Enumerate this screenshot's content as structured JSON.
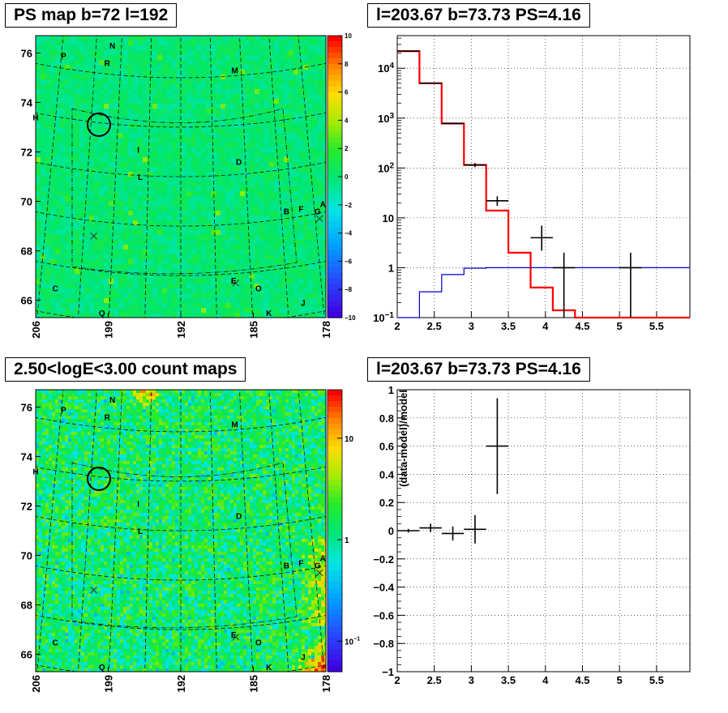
{
  "panels": {
    "ps_map": {
      "title": "PS map b=72 l=192"
    },
    "spectrum": {
      "title": "l=203.67 b=73.73 PS=4.16"
    },
    "count_map": {
      "title": "2.50<logE<3.00 count maps"
    },
    "residual": {
      "title": "l=203.67 b=73.73 PS=4.16"
    }
  },
  "colors": {
    "map_background": "#3de655",
    "model_line": "#ff0000",
    "background_line": "#0000cc",
    "data_marker": "#000000",
    "grid": "#000000"
  },
  "chart_data": [
    {
      "id": "ps_map",
      "type": "heatmap",
      "title": "PS map b=72 l=192",
      "x_ticks": [
        "206",
        "199",
        "192",
        "185",
        "178"
      ],
      "y_ticks": [
        "66",
        "68",
        "70",
        "72",
        "74",
        "76"
      ],
      "xlim": [
        206,
        178
      ],
      "ylim": [
        65.3,
        76.7
      ],
      "colorbar": {
        "scale": "linear",
        "range": [
          -10,
          10
        ],
        "ticks": [
          "10",
          "8",
          "6",
          "4",
          "2",
          "0",
          "−2",
          "−4",
          "−6",
          "−8",
          "−10"
        ]
      },
      "source_labels": [
        {
          "label": "P",
          "l": 203.3,
          "b": 75.9
        },
        {
          "label": "N",
          "l": 198.6,
          "b": 76.3
        },
        {
          "label": "R",
          "l": 199.1,
          "b": 75.6
        },
        {
          "label": "M",
          "l": 186.8,
          "b": 75.3
        },
        {
          "label": "H",
          "l": 206.0,
          "b": 73.4
        },
        {
          "label": "I",
          "l": 196.1,
          "b": 72.1
        },
        {
          "label": "D",
          "l": 186.4,
          "b": 71.6
        },
        {
          "label": "L",
          "l": 195.9,
          "b": 71.0
        },
        {
          "label": "B",
          "l": 181.8,
          "b": 69.6
        },
        {
          "label": "F",
          "l": 180.4,
          "b": 69.7
        },
        {
          "label": "A",
          "l": 178.3,
          "b": 69.9
        },
        {
          "label": "G",
          "l": 178.8,
          "b": 69.6
        },
        {
          "label": "E",
          "l": 186.9,
          "b": 66.8
        },
        {
          "label": "O",
          "l": 184.5,
          "b": 66.5
        },
        {
          "label": "C",
          "l": 204.1,
          "b": 66.5
        },
        {
          "label": "Q",
          "l": 199.6,
          "b": 65.5
        },
        {
          "label": "K",
          "l": 183.5,
          "b": 65.5
        },
        {
          "label": "J",
          "l": 180.2,
          "b": 65.9
        }
      ],
      "markers": [
        {
          "shape": "circle",
          "l": 199.9,
          "b": 73.1
        },
        {
          "shape": "cross",
          "l": 200.4,
          "b": 68.6
        },
        {
          "shape": "cross",
          "l": 186.7,
          "b": 66.7
        },
        {
          "shape": "cross",
          "l": 178.6,
          "b": 69.3
        }
      ]
    },
    {
      "id": "spectrum",
      "type": "line",
      "title": "l=203.67 b=73.73 PS=4.16",
      "x_scale": "linear",
      "y_scale": "log",
      "xlim": [
        2,
        5.95
      ],
      "ylim": [
        0.1,
        45000
      ],
      "x_ticks": [
        "2",
        "2.5",
        "3",
        "3.5",
        "4",
        "4.5",
        "5",
        "5.5"
      ],
      "y_ticks": [
        {
          "value": 0.1,
          "label": "10^-1"
        },
        {
          "value": 1,
          "label": "1"
        },
        {
          "value": 10,
          "label": "10"
        },
        {
          "value": 100,
          "label": "10^2"
        },
        {
          "value": 1000,
          "label": "10^3"
        },
        {
          "value": 10000,
          "label": "10^4"
        }
      ],
      "grid": true,
      "series": [
        {
          "role": "model",
          "style": "step",
          "bins": [
            2.0,
            2.3,
            2.6,
            2.9,
            3.2,
            3.5,
            3.8,
            4.1,
            4.4,
            5.95
          ],
          "values": [
            22000,
            5000,
            780,
            115,
            14,
            2,
            0.4,
            0.14,
            0.1
          ]
        },
        {
          "role": "background",
          "style": "step",
          "bins": [
            2.0,
            2.3,
            2.6,
            2.9,
            3.2,
            3.5,
            5.95
          ],
          "values": [
            0.07,
            0.33,
            0.73,
            0.98,
            1.0,
            1.0
          ]
        },
        {
          "role": "data",
          "style": "errorbar",
          "points": [
            {
              "x": 2.15,
              "y": 22000,
              "xerr": 0.15,
              "ylo": 21700,
              "yhi": 22300
            },
            {
              "x": 2.45,
              "y": 5000,
              "xerr": 0.15,
              "ylo": 4860,
              "yhi": 5140
            },
            {
              "x": 2.75,
              "y": 780,
              "xerr": 0.15,
              "ylo": 752,
              "yhi": 808
            },
            {
              "x": 3.05,
              "y": 115,
              "xerr": 0.15,
              "ylo": 104,
              "yhi": 126
            },
            {
              "x": 3.35,
              "y": 22,
              "xerr": 0.15,
              "ylo": 17.5,
              "yhi": 27
            },
            {
              "x": 3.95,
              "y": 4,
              "xerr": 0.15,
              "ylo": 2.2,
              "yhi": 7
            },
            {
              "x": 4.25,
              "y": 1,
              "xerr": 0.15,
              "ylo": 0.1,
              "yhi": 2
            },
            {
              "x": 5.15,
              "y": 1,
              "xerr": 0.15,
              "ylo": 0.1,
              "yhi": 2
            }
          ]
        }
      ]
    },
    {
      "id": "count_map",
      "type": "heatmap",
      "title": "2.50<logE<3.00 count maps",
      "x_ticks": [
        "206",
        "199",
        "192",
        "185",
        "178"
      ],
      "y_ticks": [
        "66",
        "68",
        "70",
        "72",
        "74",
        "76"
      ],
      "xlim": [
        206,
        178
      ],
      "ylim": [
        65.3,
        76.7
      ],
      "colorbar": {
        "scale": "log",
        "range": [
          0.05,
          30
        ],
        "ticks": [
          {
            "value": 10,
            "label": "10"
          },
          {
            "value": 1,
            "label": "1"
          },
          {
            "value": 0.1,
            "label": "10^-1"
          }
        ]
      },
      "source_labels": [
        {
          "label": "P",
          "l": 203.3,
          "b": 75.9
        },
        {
          "label": "N",
          "l": 198.6,
          "b": 76.3
        },
        {
          "label": "R",
          "l": 199.1,
          "b": 75.6
        },
        {
          "label": "M",
          "l": 186.8,
          "b": 75.3
        },
        {
          "label": "H",
          "l": 206.0,
          "b": 73.4
        },
        {
          "label": "I",
          "l": 196.1,
          "b": 72.1
        },
        {
          "label": "D",
          "l": 186.4,
          "b": 71.6
        },
        {
          "label": "L",
          "l": 195.9,
          "b": 71.0
        },
        {
          "label": "B",
          "l": 181.8,
          "b": 69.6
        },
        {
          "label": "F",
          "l": 180.4,
          "b": 69.7
        },
        {
          "label": "A",
          "l": 178.3,
          "b": 69.9
        },
        {
          "label": "G",
          "l": 178.8,
          "b": 69.6
        },
        {
          "label": "E",
          "l": 186.9,
          "b": 66.8
        },
        {
          "label": "O",
          "l": 184.5,
          "b": 66.5
        },
        {
          "label": "C",
          "l": 204.1,
          "b": 66.5
        },
        {
          "label": "Q",
          "l": 199.6,
          "b": 65.5
        },
        {
          "label": "K",
          "l": 183.5,
          "b": 65.5
        },
        {
          "label": "J",
          "l": 180.2,
          "b": 65.9
        }
      ],
      "markers": [
        {
          "shape": "circle",
          "l": 199.9,
          "b": 73.1
        },
        {
          "shape": "cross",
          "l": 200.4,
          "b": 68.6
        },
        {
          "shape": "cross",
          "l": 186.7,
          "b": 66.7
        },
        {
          "shape": "cross",
          "l": 178.6,
          "b": 69.3
        }
      ]
    },
    {
      "id": "residual",
      "type": "scatter",
      "title": "l=203.67 b=73.73 PS=4.16",
      "ylabel": "(data-model)/model",
      "xlim": [
        2,
        5.95
      ],
      "ylim": [
        -1,
        1
      ],
      "x_ticks": [
        "2",
        "2.5",
        "3",
        "3.5",
        "4",
        "4.5",
        "5",
        "5.5"
      ],
      "y_ticks": [
        "1",
        "0.8",
        "0.6",
        "0.4",
        "0.2",
        "0",
        "−0.2",
        "−0.4",
        "−0.6",
        "−0.8",
        "−1"
      ],
      "grid": true,
      "points": [
        {
          "x": 2.15,
          "y": 0.0,
          "xerr": 0.15,
          "yerr": 0.013
        },
        {
          "x": 2.45,
          "y": 0.02,
          "xerr": 0.15,
          "yerr": 0.03
        },
        {
          "x": 2.75,
          "y": -0.02,
          "xerr": 0.15,
          "yerr": 0.05
        },
        {
          "x": 3.05,
          "y": 0.01,
          "xerr": 0.15,
          "yerr": 0.1
        },
        {
          "x": 3.35,
          "y": 0.6,
          "xerr": 0.15,
          "yerr": 0.34
        }
      ]
    }
  ]
}
